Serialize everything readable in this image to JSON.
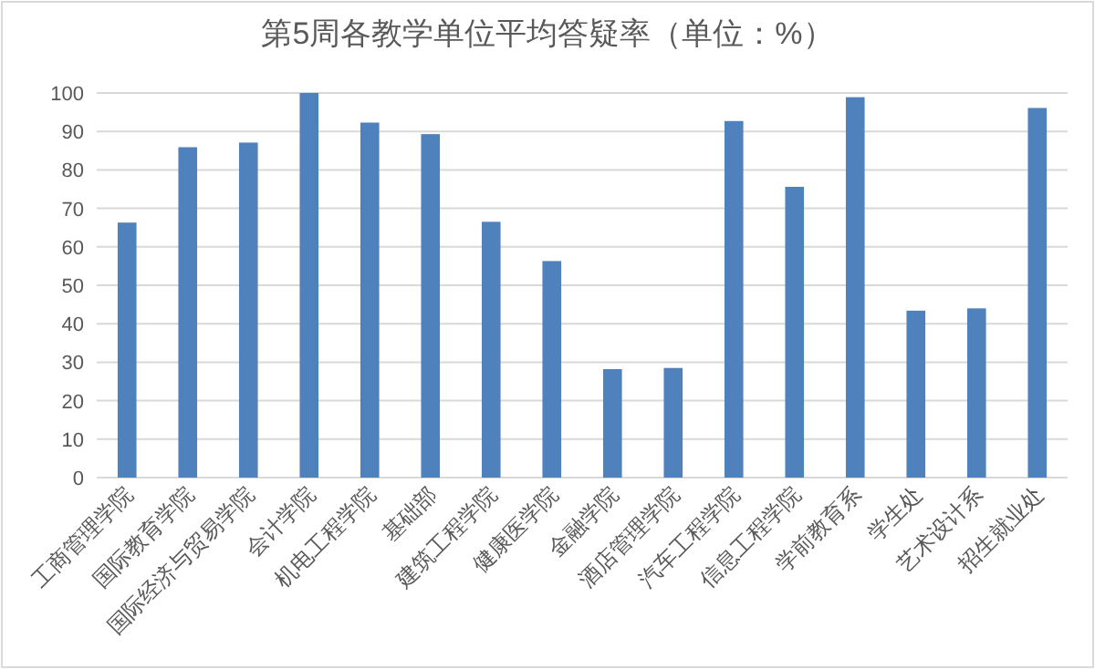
{
  "chart_data": {
    "type": "bar",
    "title": "第5周各教学单位平均答疑率（单位：%）",
    "categories": [
      "工商管理学院",
      "国际教育学院",
      "国际经济与贸易学院",
      "会计学院",
      "机电工程学院",
      "基础部",
      "建筑工程学院",
      "健康医学院",
      "金融学院",
      "酒店管理学院",
      "汽车工程学院",
      "信息工程学院",
      "学前教育系",
      "学生处",
      "艺术设计系",
      "招生就业处"
    ],
    "values": [
      66.3,
      85.9,
      87.1,
      100,
      92.3,
      89.3,
      66.5,
      56.3,
      28.2,
      28.5,
      92.7,
      75.6,
      98.9,
      43.4,
      44.0,
      96.1
    ],
    "color": "#4f81bd",
    "ylim": [
      0,
      100
    ],
    "yticks": [
      0,
      10,
      20,
      30,
      40,
      50,
      60,
      70,
      80,
      90,
      100
    ],
    "grid": "y"
  }
}
